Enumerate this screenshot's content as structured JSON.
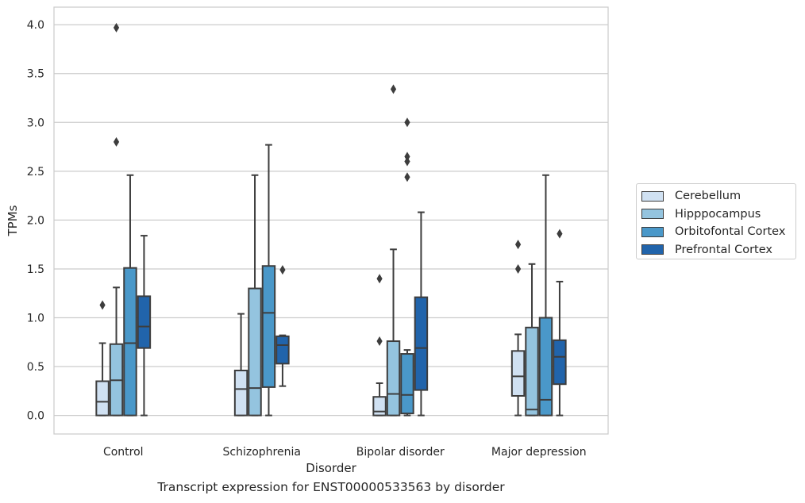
{
  "caption": "Transcript expression for ENST00000533563 by disorder",
  "chart_data": {
    "type": "boxplot",
    "xlabel": "Disorder",
    "ylabel": "TPMs",
    "ylim": [
      -0.19,
      4.18
    ],
    "yticks": [
      "0.0",
      "0.5",
      "1.0",
      "1.5",
      "2.0",
      "2.5",
      "3.0",
      "3.5",
      "4.0"
    ],
    "grid": "horizontal",
    "legend_position": "right-outside",
    "categories": [
      "Control",
      "Schizophrenia",
      "Bipolar disorder",
      "Major depression"
    ],
    "series": [
      {
        "name": "Cerebellum",
        "color": "#d0e1f2",
        "boxes": [
          {
            "min": 0.0,
            "q1": 0.0,
            "median": 0.14,
            "q3": 0.35,
            "max": 0.74,
            "outliers": [
              1.13
            ]
          },
          {
            "min": 0.0,
            "q1": 0.0,
            "median": 0.27,
            "q3": 0.46,
            "max": 1.04,
            "outliers": []
          },
          {
            "min": 0.0,
            "q1": 0.0,
            "median": 0.04,
            "q3": 0.19,
            "max": 0.33,
            "outliers": [
              1.4,
              0.76
            ]
          },
          {
            "min": 0.0,
            "q1": 0.2,
            "median": 0.4,
            "q3": 0.66,
            "max": 0.83,
            "outliers": [
              1.75,
              1.5
            ]
          }
        ]
      },
      {
        "name": "Hipppocampus",
        "color": "#94c4df",
        "boxes": [
          {
            "min": 0.0,
            "q1": 0.0,
            "median": 0.36,
            "q3": 0.73,
            "max": 1.31,
            "outliers": [
              3.97,
              2.8
            ]
          },
          {
            "min": 0.0,
            "q1": 0.0,
            "median": 0.28,
            "q3": 1.3,
            "max": 2.46,
            "outliers": []
          },
          {
            "min": 0.0,
            "q1": 0.0,
            "median": 0.22,
            "q3": 0.76,
            "max": 1.7,
            "outliers": [
              3.34
            ]
          },
          {
            "min": 0.0,
            "q1": 0.0,
            "median": 0.06,
            "q3": 0.9,
            "max": 1.55,
            "outliers": []
          }
        ]
      },
      {
        "name": "Orbitofontal Cortex",
        "color": "#4a98c9",
        "boxes": [
          {
            "min": 0.0,
            "q1": 0.0,
            "median": 0.74,
            "q3": 1.51,
            "max": 2.46,
            "outliers": []
          },
          {
            "min": 0.0,
            "q1": 0.29,
            "median": 1.05,
            "q3": 1.53,
            "max": 2.77,
            "outliers": []
          },
          {
            "min": 0.0,
            "q1": 0.02,
            "median": 0.21,
            "q3": 0.63,
            "max": 0.67,
            "outliers": [
              3.0,
              2.65,
              2.6,
              2.44
            ]
          },
          {
            "min": 0.0,
            "q1": 0.0,
            "median": 0.16,
            "q3": 1.0,
            "max": 2.46,
            "outliers": []
          }
        ]
      },
      {
        "name": "Prefrontal Cortex",
        "color": "#2164ab",
        "boxes": [
          {
            "min": 0.0,
            "q1": 0.69,
            "median": 0.91,
            "q3": 1.22,
            "max": 1.84,
            "outliers": []
          },
          {
            "min": 0.3,
            "q1": 0.53,
            "median": 0.72,
            "q3": 0.81,
            "max": 0.82,
            "outliers": [
              1.49
            ]
          },
          {
            "min": 0.0,
            "q1": 0.26,
            "median": 0.69,
            "q3": 1.21,
            "max": 2.08,
            "outliers": []
          },
          {
            "min": 0.0,
            "q1": 0.32,
            "median": 0.6,
            "q3": 0.77,
            "max": 1.37,
            "outliers": [
              1.86
            ]
          }
        ]
      }
    ]
  }
}
